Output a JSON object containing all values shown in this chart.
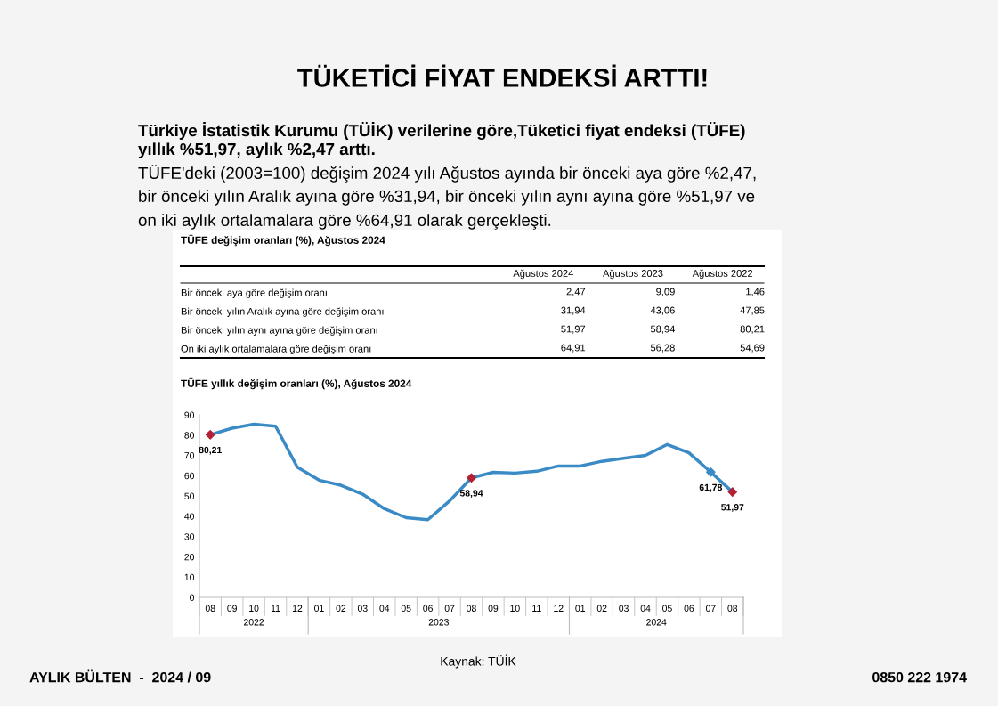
{
  "chart_data": [
    {
      "type": "other",
      "title": "TÜKETİCİ FİYAT ENDEKSİ ARTTI!",
      "subtitle": "Türkiye İstatistik Kurumu (TÜİK) verilerine göre,Tüketici fiyat endeksi (TÜFE)\nyıllık %51,97, aylık %2,47 arttı.",
      "annotations": [
        "TÜFE'deki (2003=100) değişim 2024 yılı Ağustos ayında bir önceki aya göre %2,47,",
        "bir önceki yılın Aralık ayına göre %31,94, bir önceki yılın aynı ayına göre %51,97 ve",
        "on iki aylık ortalamalara göre %64,91 olarak gerçekleşti.",
        "Kaynak: TÜİK",
        "AYLIK BÜLTEN  -  2024 / 09",
        "0850 222 1974"
      ]
    },
    {
      "type": "other",
      "title": "TÜFE değişim oranları (%), Ağustos 2024",
      "categories": [
        "Ağustos 2024",
        "Ağustos 2023",
        "Ağustos 2022"
      ],
      "y_categories": [
        "Bir önceki aya göre değişim oranı",
        "Bir önceki yılın Aralık ayına göre değişim oranı",
        "Bir önceki yılın aynı ayına göre değişim oranı",
        "On iki aylık ortalamalara göre değişim oranı"
      ],
      "cell_labels": [
        [
          "2,47",
          "9,09",
          "1,46"
        ],
        [
          "31,94",
          "43,06",
          "47,85"
        ],
        [
          "51,97",
          "58,94",
          "80,21"
        ],
        [
          "64,91",
          "56,28",
          "54,69"
        ]
      ]
    },
    {
      "type": "line",
      "title": "TÜFE yıllık değişim oranları (%), Ağustos 2024",
      "categories": [
        "08",
        "09",
        "10",
        "11",
        "12",
        "01",
        "02",
        "03",
        "04",
        "05",
        "06",
        "07",
        "08",
        "09",
        "10",
        "11",
        "12",
        "01",
        "02",
        "03",
        "04",
        "05",
        "06",
        "07",
        "08"
      ],
      "annotations": [
        "2022",
        "2023",
        "2024"
      ],
      "series": [
        {
          "color": "#3a8ac6",
          "values": [
            80.21,
            83.4,
            85.4,
            84.4,
            64.2,
            57.8,
            55.3,
            50.9,
            43.7,
            39.3,
            38.3,
            47.6,
            58.94,
            61.7,
            61.3,
            62.2,
            64.8,
            64.8,
            67.1,
            68.6,
            70.0,
            75.4,
            71.3,
            61.78,
            51.97
          ],
          "value_labels": [
            "80,21",
            null,
            null,
            null,
            null,
            null,
            null,
            null,
            null,
            null,
            null,
            null,
            "58,94",
            null,
            null,
            null,
            null,
            null,
            null,
            null,
            null,
            null,
            null,
            "61,78",
            "51,97"
          ],
          "colors": [
            "#b22234",
            null,
            null,
            null,
            null,
            null,
            null,
            null,
            null,
            null,
            null,
            null,
            "#b22234",
            null,
            null,
            null,
            null,
            null,
            null,
            null,
            null,
            null,
            null,
            "#3a8ac6",
            "#b22234"
          ]
        }
      ],
      "ylim": [
        0,
        90
      ],
      "yticks": [
        0,
        10,
        20,
        30,
        40,
        50,
        60,
        70,
        80,
        90
      ],
      "grid": false,
      "line_style": "solid"
    }
  ]
}
